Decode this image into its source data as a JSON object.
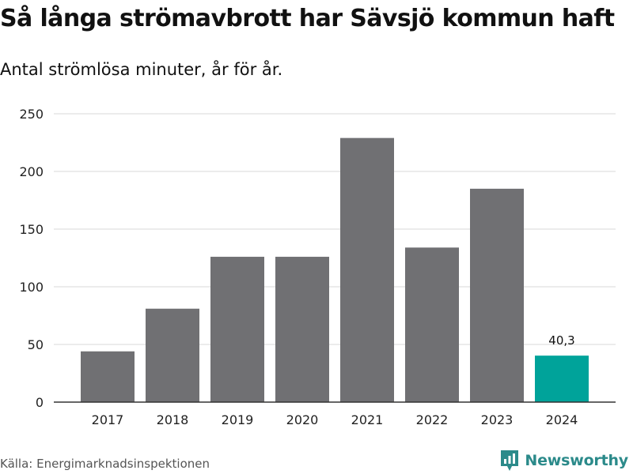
{
  "title": "Så långa strömavbrott har Sävsjö kommun haft",
  "subtitle": "Antal strömlösa minuter, år för år.",
  "source": "Källa: Energimarknadsinspektionen",
  "brand": {
    "name": "Newsworthy",
    "icon": "newsworthy-logo-icon",
    "color": "#2b8a8a"
  },
  "chart_data": {
    "type": "bar",
    "title": "Så långa strömavbrott har Sävsjö kommun haft",
    "subtitle": "Antal strömlösa minuter, år för år.",
    "xlabel": "",
    "ylabel": "",
    "categories": [
      "2017",
      "2018",
      "2019",
      "2020",
      "2021",
      "2022",
      "2023",
      "2024"
    ],
    "values": [
      44,
      81,
      126,
      126,
      229,
      134,
      185,
      40.3
    ],
    "highlight_index": 7,
    "annotation": {
      "index": 7,
      "text": "40,3"
    },
    "ylim": [
      0,
      250
    ],
    "yticks": [
      0,
      50,
      100,
      150,
      200,
      250
    ],
    "grid": true,
    "bar_color": "#707073",
    "highlight_color": "#00a39a"
  }
}
